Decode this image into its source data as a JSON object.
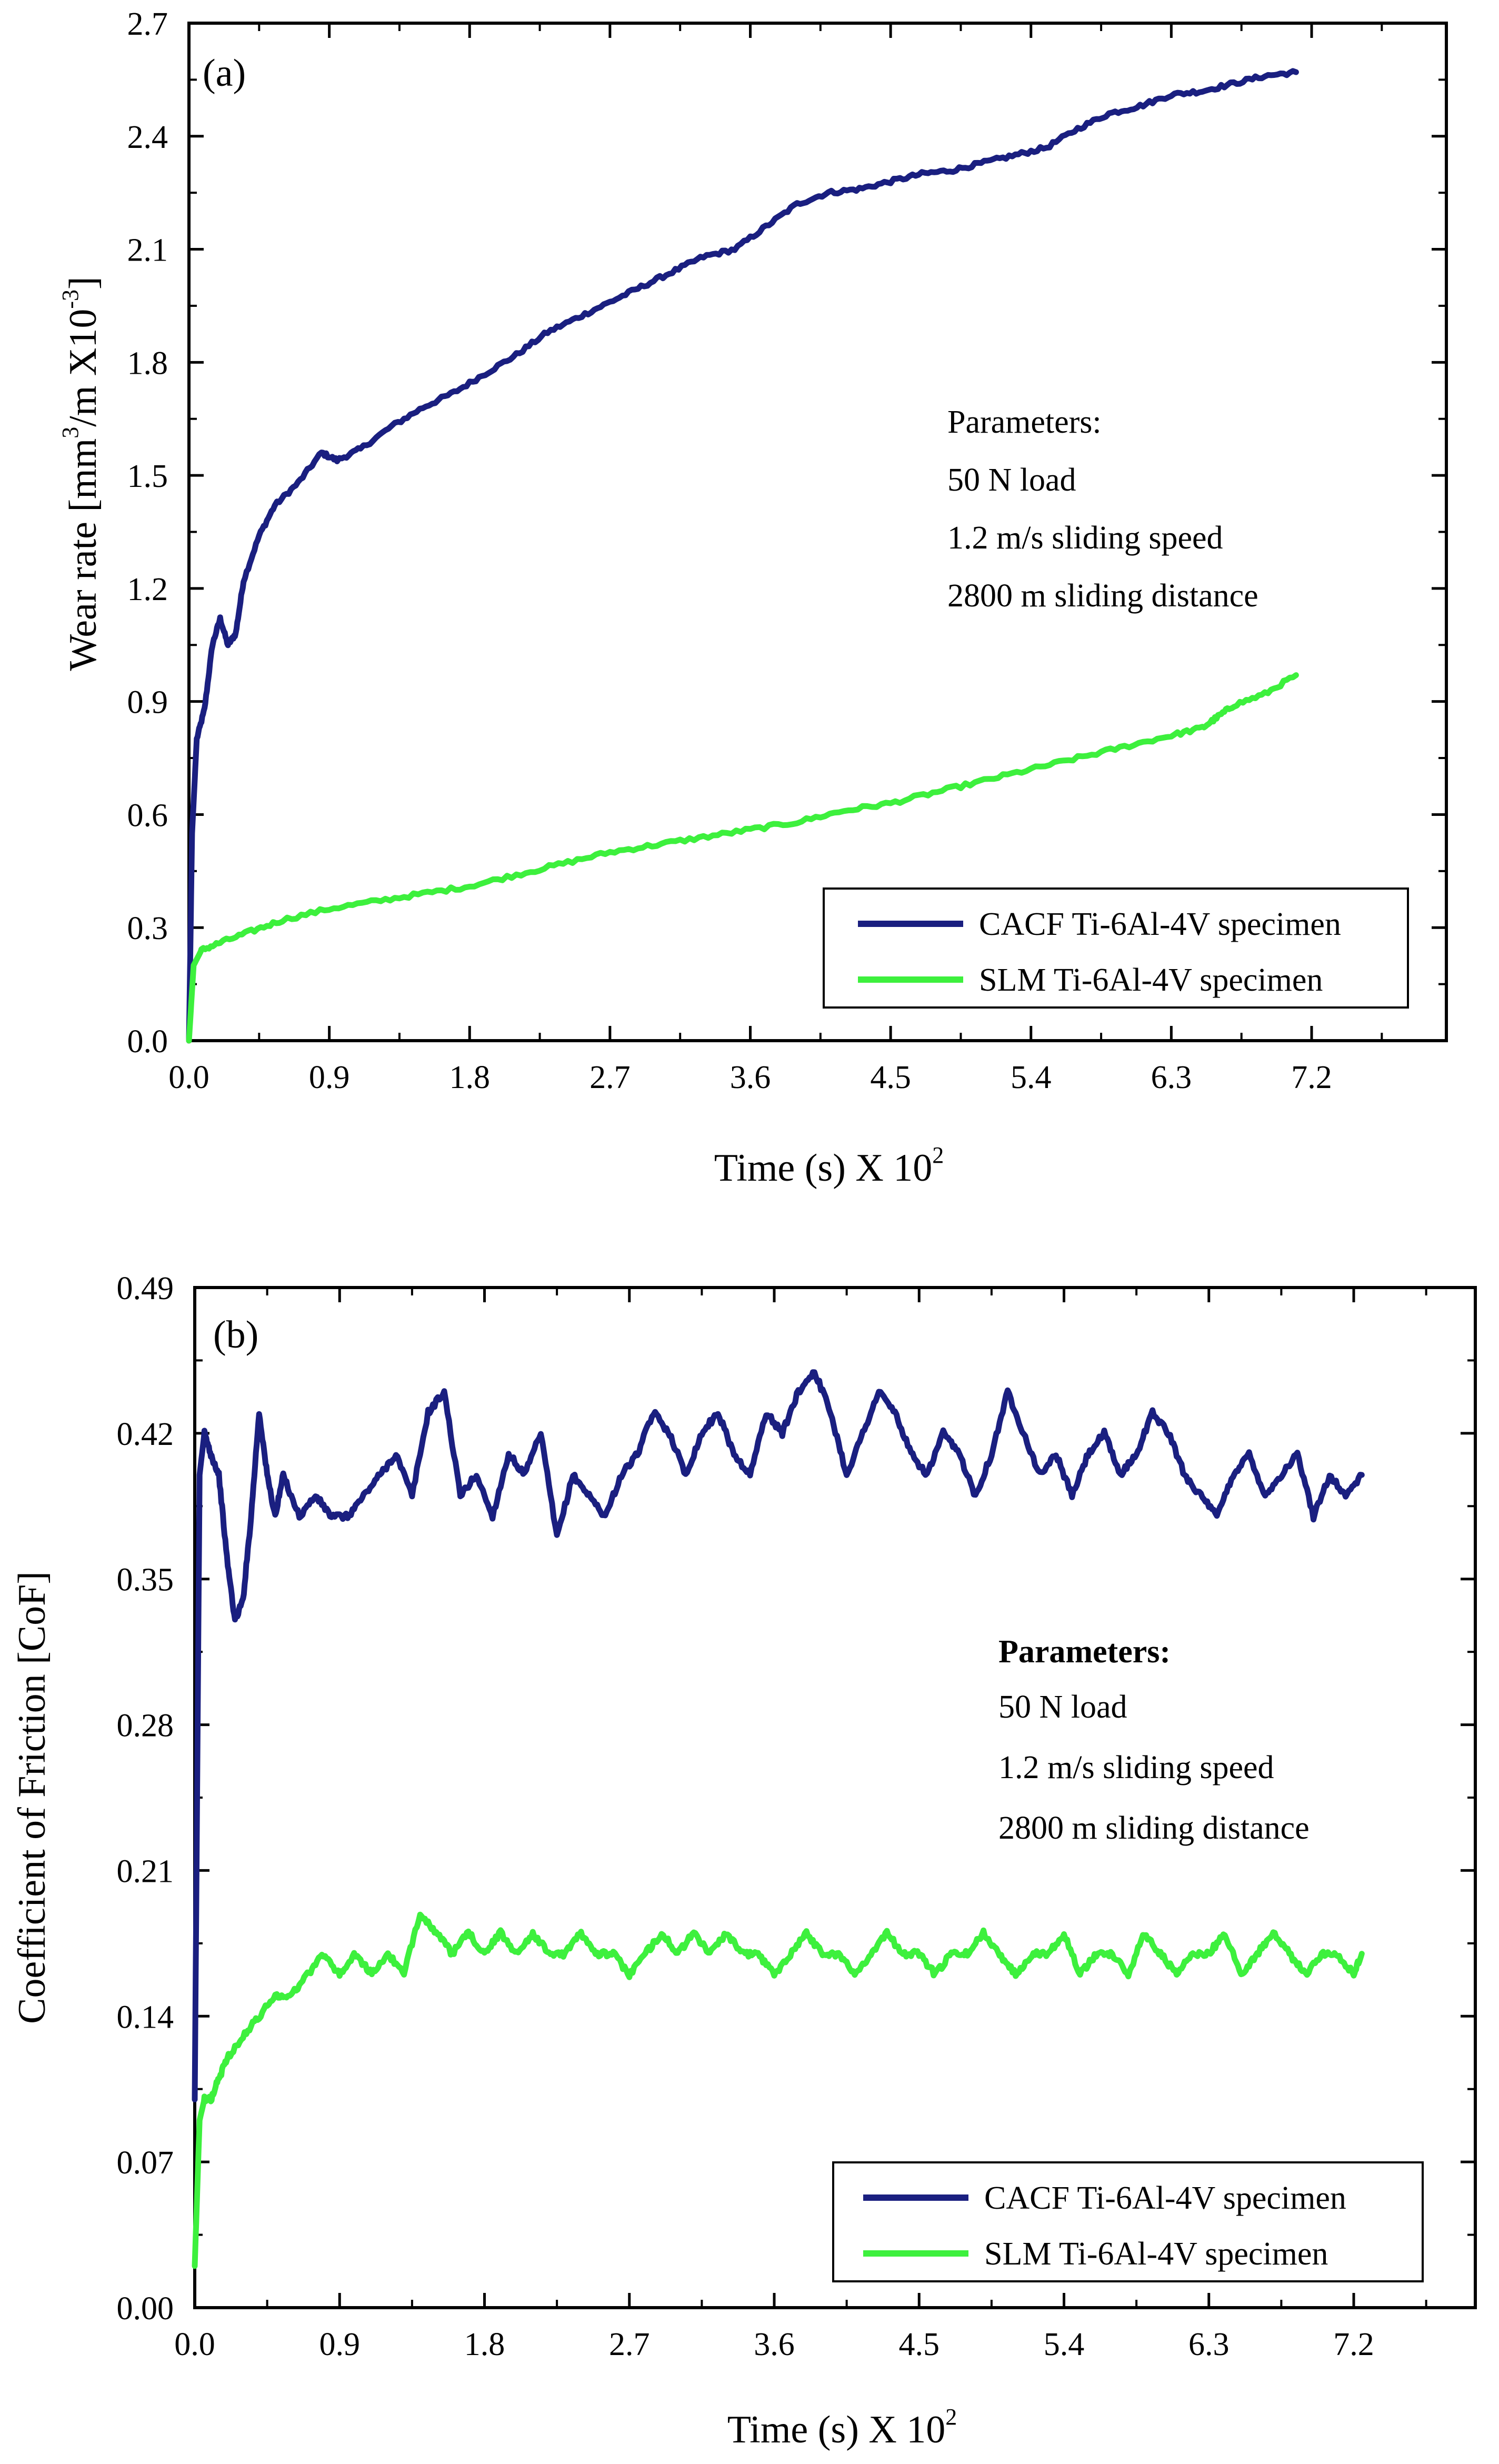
{
  "chart_data": [
    {
      "panel": "(a)",
      "type": "line",
      "xlabel": "Time (s) X 10",
      "xlabel_sup": "2",
      "ylabel_pre": "Wear rate [mm",
      "ylabel_sup1": "3",
      "ylabel_mid": "/m X10",
      "ylabel_sup2": "-3",
      "ylabel_post": "]",
      "xlim": [
        0,
        9.0
      ],
      "ylim": [
        0,
        2.7
      ],
      "xticks": [
        "0.0",
        "0.9",
        "1.8",
        "2.7",
        "3.6",
        "4.5",
        "5.4",
        "6.3",
        "7.2"
      ],
      "yticks": [
        "0.0",
        "0.3",
        "0.6",
        "0.9",
        "1.2",
        "1.5",
        "1.8",
        "2.1",
        "2.4",
        "2.7"
      ],
      "annotation": {
        "title": "Parameters:",
        "lines": [
          "50 N load",
          "1.2 m/s sliding speed",
          "2800 m sliding distance"
        ]
      },
      "legend_position": "bottom-right",
      "series": [
        {
          "name": "CACF Ti-6Al-4V specimen",
          "color": "#1a1f80",
          "x": [
            0.0,
            0.02,
            0.05,
            0.1,
            0.15,
            0.2,
            0.25,
            0.3,
            0.35,
            0.45,
            0.55,
            0.7,
            0.85,
            0.95,
            1.1,
            1.3,
            1.5,
            1.7,
            1.9,
            2.1,
            2.3,
            2.5,
            2.7,
            2.9,
            3.1,
            3.3,
            3.5,
            3.7,
            3.9,
            4.1,
            4.3,
            4.5,
            4.7,
            4.9,
            5.1,
            5.3,
            5.5,
            5.7,
            5.9,
            6.1,
            6.3,
            6.5,
            6.7,
            6.9,
            7.1
          ],
          "y": [
            0.0,
            0.55,
            0.8,
            0.88,
            1.05,
            1.12,
            1.05,
            1.08,
            1.22,
            1.34,
            1.42,
            1.48,
            1.56,
            1.54,
            1.57,
            1.63,
            1.68,
            1.72,
            1.77,
            1.82,
            1.88,
            1.92,
            1.96,
            2.0,
            2.04,
            2.08,
            2.1,
            2.16,
            2.22,
            2.25,
            2.26,
            2.28,
            2.3,
            2.31,
            2.33,
            2.35,
            2.37,
            2.42,
            2.46,
            2.48,
            2.51,
            2.52,
            2.54,
            2.56,
            2.57
          ]
        },
        {
          "name": "SLM Ti-6Al-4V specimen",
          "color": "#3df03d",
          "x": [
            0.0,
            0.03,
            0.08,
            0.2,
            0.4,
            0.6,
            0.9,
            1.2,
            1.5,
            1.8,
            2.1,
            2.4,
            2.7,
            3.0,
            3.3,
            3.6,
            3.9,
            4.2,
            4.5,
            4.8,
            5.1,
            5.4,
            5.7,
            6.0,
            6.3,
            6.5,
            6.6,
            6.7,
            6.9,
            7.1
          ],
          "y": [
            0.0,
            0.2,
            0.24,
            0.26,
            0.29,
            0.32,
            0.35,
            0.37,
            0.39,
            0.41,
            0.44,
            0.47,
            0.5,
            0.52,
            0.54,
            0.56,
            0.58,
            0.61,
            0.63,
            0.66,
            0.69,
            0.72,
            0.75,
            0.78,
            0.81,
            0.83,
            0.86,
            0.89,
            0.92,
            0.97
          ]
        }
      ]
    },
    {
      "panel": "(b)",
      "type": "line",
      "xlabel": "Time (s) X 10",
      "xlabel_sup": "2",
      "ylabel": "Coefficient of Friction [CoF]",
      "xlim": [
        0,
        9.0
      ],
      "ylim": [
        0,
        0.49
      ],
      "xticks": [
        "0.0",
        "0.9",
        "1.8",
        "2.7",
        "3.6",
        "4.5",
        "5.4",
        "6.3",
        "7.2"
      ],
      "yticks": [
        "0.00",
        "0.07",
        "0.14",
        "0.21",
        "0.28",
        "0.35",
        "0.42",
        "0.49"
      ],
      "annotation": {
        "title": "Parameters:",
        "lines": [
          "50 N load",
          "1.2 m/s sliding speed",
          "2800 m sliding distance"
        ]
      },
      "legend_position": "bottom-right",
      "series": [
        {
          "name": "CACF Ti-6Al-4V specimen",
          "color": "#1a1f80",
          "x": [
            0.0,
            0.03,
            0.06,
            0.1,
            0.15,
            0.2,
            0.25,
            0.3,
            0.35,
            0.4,
            0.45,
            0.5,
            0.55,
            0.65,
            0.75,
            0.85,
            0.95,
            1.05,
            1.15,
            1.25,
            1.35,
            1.45,
            1.55,
            1.65,
            1.75,
            1.85,
            1.95,
            2.05,
            2.15,
            2.25,
            2.35,
            2.45,
            2.55,
            2.65,
            2.75,
            2.85,
            2.95,
            3.05,
            3.15,
            3.25,
            3.35,
            3.45,
            3.55,
            3.65,
            3.75,
            3.85,
            3.95,
            4.05,
            4.15,
            4.25,
            4.35,
            4.45,
            4.55,
            4.65,
            4.75,
            4.85,
            4.95,
            5.05,
            5.15,
            5.25,
            5.35,
            5.45,
            5.55,
            5.65,
            5.75,
            5.85,
            5.95,
            6.05,
            6.15,
            6.25,
            6.35,
            6.45,
            6.55,
            6.65,
            6.75,
            6.85,
            6.95,
            7.05,
            7.15,
            7.25
          ],
          "y": [
            0.1,
            0.4,
            0.42,
            0.41,
            0.4,
            0.36,
            0.33,
            0.34,
            0.38,
            0.43,
            0.4,
            0.38,
            0.4,
            0.38,
            0.39,
            0.38,
            0.38,
            0.39,
            0.4,
            0.41,
            0.39,
            0.43,
            0.44,
            0.39,
            0.4,
            0.38,
            0.41,
            0.4,
            0.42,
            0.37,
            0.4,
            0.39,
            0.38,
            0.4,
            0.41,
            0.43,
            0.42,
            0.4,
            0.42,
            0.43,
            0.41,
            0.4,
            0.43,
            0.42,
            0.44,
            0.45,
            0.43,
            0.4,
            0.42,
            0.44,
            0.43,
            0.41,
            0.4,
            0.42,
            0.41,
            0.39,
            0.41,
            0.44,
            0.42,
            0.4,
            0.41,
            0.39,
            0.41,
            0.42,
            0.4,
            0.41,
            0.43,
            0.42,
            0.4,
            0.39,
            0.38,
            0.4,
            0.41,
            0.39,
            0.4,
            0.41,
            0.38,
            0.4,
            0.39,
            0.4
          ]
        },
        {
          "name": "SLM Ti-6Al-4V specimen",
          "color": "#3df03d",
          "x": [
            0.0,
            0.03,
            0.06,
            0.1,
            0.15,
            0.2,
            0.3,
            0.4,
            0.5,
            0.6,
            0.7,
            0.8,
            0.9,
            1.0,
            1.1,
            1.2,
            1.3,
            1.4,
            1.5,
            1.6,
            1.7,
            1.8,
            1.9,
            2.0,
            2.1,
            2.2,
            2.3,
            2.4,
            2.5,
            2.6,
            2.7,
            2.8,
            2.9,
            3.0,
            3.1,
            3.2,
            3.3,
            3.4,
            3.5,
            3.6,
            3.7,
            3.8,
            3.9,
            4.0,
            4.1,
            4.2,
            4.3,
            4.4,
            4.5,
            4.6,
            4.7,
            4.8,
            4.9,
            5.0,
            5.1,
            5.2,
            5.3,
            5.4,
            5.5,
            5.6,
            5.7,
            5.8,
            5.9,
            6.0,
            6.1,
            6.2,
            6.3,
            6.4,
            6.5,
            6.6,
            6.7,
            6.8,
            6.9,
            7.0,
            7.1,
            7.2,
            7.25
          ],
          "y": [
            0.02,
            0.09,
            0.1,
            0.1,
            0.11,
            0.12,
            0.13,
            0.14,
            0.15,
            0.15,
            0.16,
            0.17,
            0.16,
            0.17,
            0.16,
            0.17,
            0.16,
            0.19,
            0.18,
            0.17,
            0.18,
            0.17,
            0.18,
            0.17,
            0.18,
            0.17,
            0.17,
            0.18,
            0.17,
            0.17,
            0.16,
            0.17,
            0.18,
            0.17,
            0.18,
            0.17,
            0.18,
            0.17,
            0.17,
            0.16,
            0.17,
            0.18,
            0.17,
            0.17,
            0.16,
            0.17,
            0.18,
            0.17,
            0.17,
            0.16,
            0.17,
            0.17,
            0.18,
            0.17,
            0.16,
            0.17,
            0.17,
            0.18,
            0.16,
            0.17,
            0.17,
            0.16,
            0.18,
            0.17,
            0.16,
            0.17,
            0.17,
            0.18,
            0.16,
            0.17,
            0.18,
            0.17,
            0.16,
            0.17,
            0.17,
            0.16,
            0.17
          ]
        }
      ]
    }
  ]
}
